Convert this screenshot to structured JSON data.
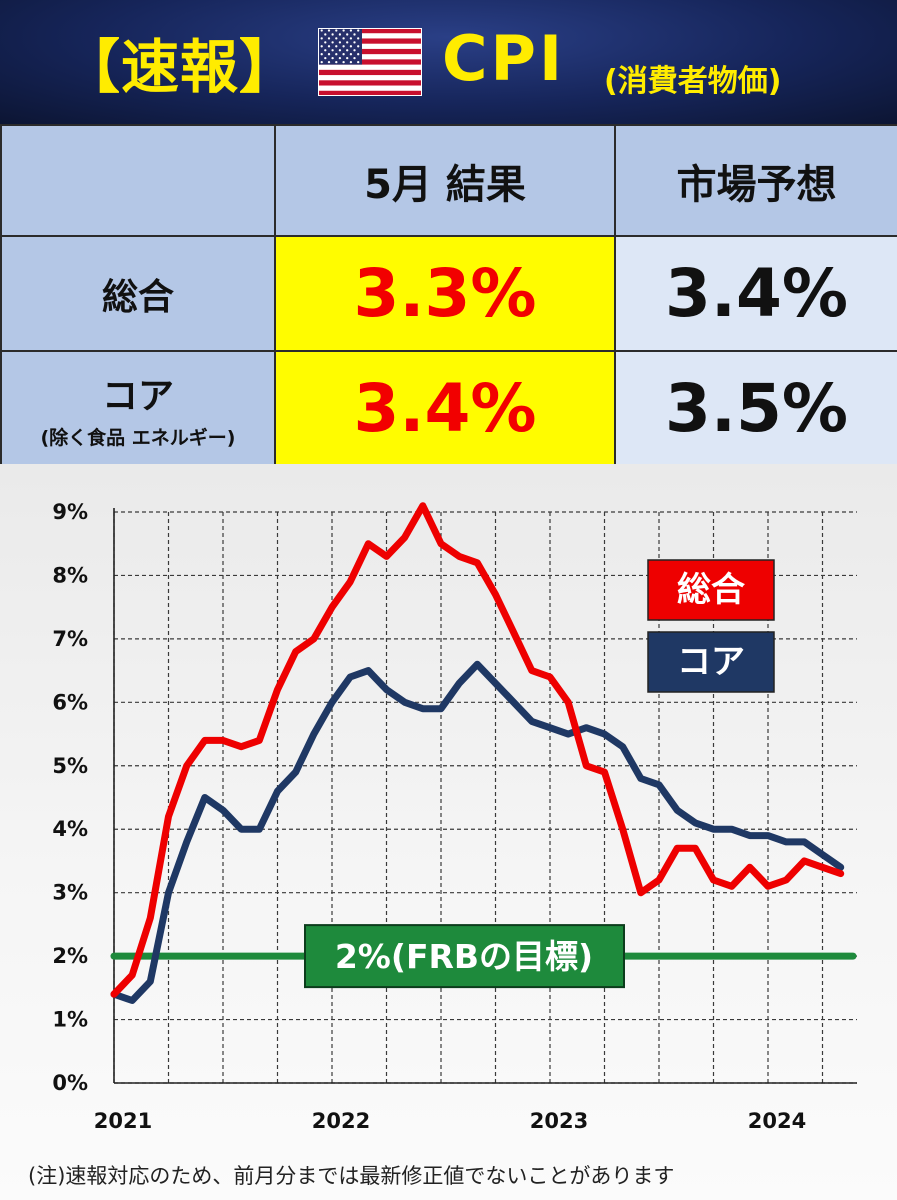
{
  "banner": {
    "title": "【速報】",
    "cpi": "CPI",
    "subtitle": "(消費者物価)",
    "flag_icon": "us-flag-icon"
  },
  "table": {
    "col_result": "5月 結果",
    "col_forecast": "市場予想",
    "rows": [
      {
        "label": "総合",
        "sublabel": "",
        "result": "3.3%",
        "forecast": "3.4%"
      },
      {
        "label": "コア",
        "sublabel": "(除く食品 エネルギー)",
        "result": "3.4%",
        "forecast": "3.5%"
      }
    ]
  },
  "chart_data": {
    "type": "line",
    "x_tick_labels": [
      "2021",
      "2022",
      "2023",
      "2024"
    ],
    "y_tick_labels": [
      "0%",
      "1%",
      "2%",
      "3%",
      "4%",
      "5%",
      "6%",
      "7%",
      "8%",
      "9%"
    ],
    "ylim": [
      0,
      9
    ],
    "x_start": "2021-01",
    "x_end": "2024-05",
    "grid": true,
    "legend_position": "top-right",
    "series": [
      {
        "name": "総合",
        "color": "#ee0000",
        "values": [
          1.4,
          1.7,
          2.6,
          4.2,
          5.0,
          5.4,
          5.4,
          5.3,
          5.4,
          6.2,
          6.8,
          7.0,
          7.5,
          7.9,
          8.5,
          8.3,
          8.6,
          9.1,
          8.5,
          8.3,
          8.2,
          7.7,
          7.1,
          6.5,
          6.4,
          6.0,
          5.0,
          4.9,
          4.0,
          3.0,
          3.2,
          3.7,
          3.7,
          3.2,
          3.1,
          3.4,
          3.1,
          3.2,
          3.5,
          3.4,
          3.3
        ]
      },
      {
        "name": "コア",
        "color": "#1f3864",
        "values": [
          1.4,
          1.3,
          1.6,
          3.0,
          3.8,
          4.5,
          4.3,
          4.0,
          4.0,
          4.6,
          4.9,
          5.5,
          6.0,
          6.4,
          6.5,
          6.2,
          6.0,
          5.9,
          5.9,
          6.3,
          6.6,
          6.3,
          6.0,
          5.7,
          5.6,
          5.5,
          5.6,
          5.5,
          5.3,
          4.8,
          4.7,
          4.3,
          4.1,
          4.0,
          4.0,
          3.9,
          3.9,
          3.8,
          3.8,
          3.6,
          3.4
        ]
      }
    ],
    "reference_line": {
      "value": 2,
      "label": "2%(FRBの目標)",
      "color": "#1e8a3c"
    }
  },
  "footnote": "(注)速報対応のため、前月分までは最新修正値でないことがあります"
}
